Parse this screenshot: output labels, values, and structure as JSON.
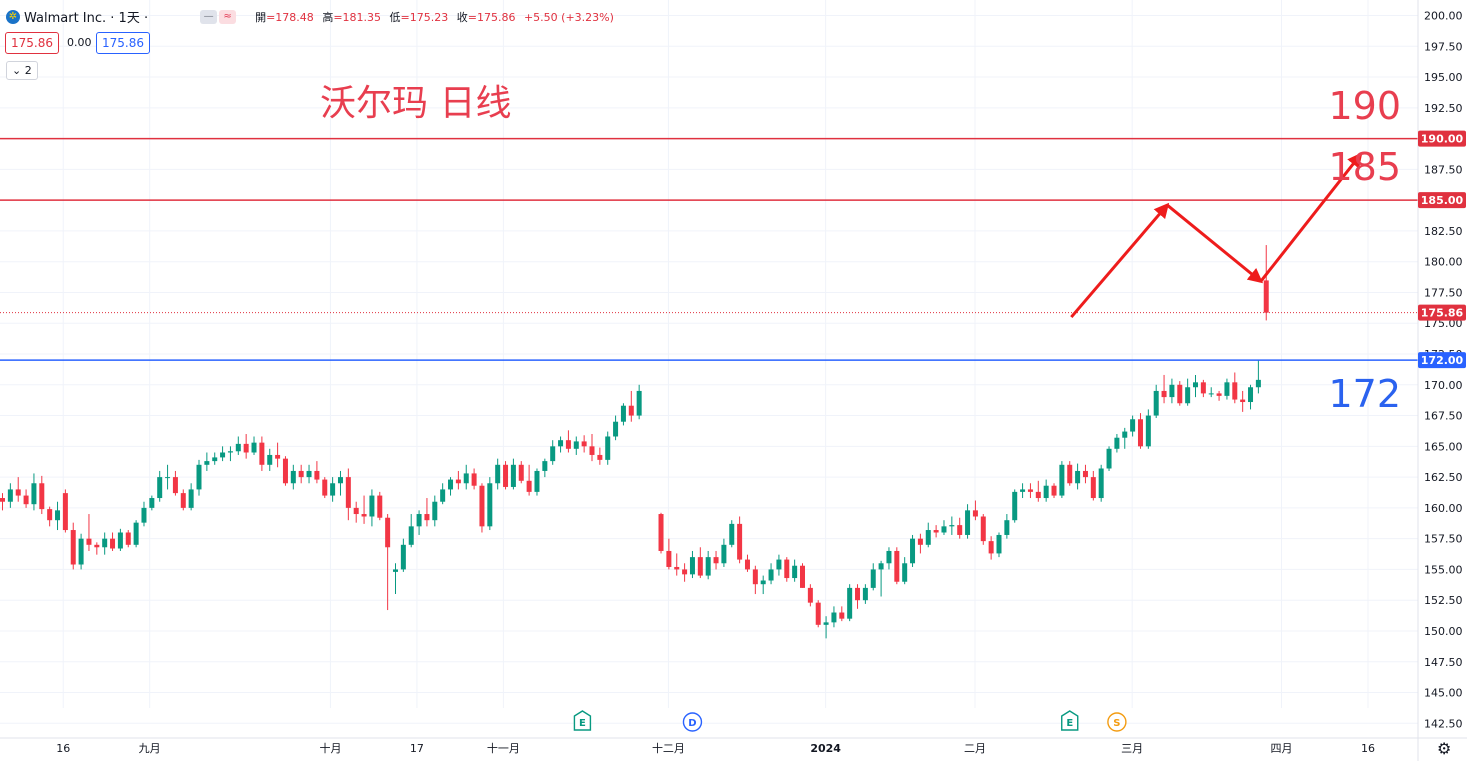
{
  "header": {
    "title": "Walmart Inc. · 1天 ·",
    "mode_buttons": [
      "—",
      "≈"
    ],
    "ohlc": {
      "open_label": "開",
      "open": "=178.48",
      "high_label": "高",
      "high": "=181.35",
      "low_label": "低",
      "low": "=175.23",
      "close_label": "收",
      "close": "=175.86",
      "change": "+5.50 (+3.23%)"
    },
    "bid": "175.86",
    "spread": "0.00",
    "ask": "175.86",
    "indicator_count": "2"
  },
  "annotations": {
    "title": "沃尔玛 日线",
    "level_190": "190",
    "level_185": "185",
    "level_172": "172"
  },
  "colors": {
    "up": "#089981",
    "down": "#f23645",
    "red_line": "#e0313f",
    "blue_line": "#2962ff",
    "arrow": "#ee1c1c"
  },
  "chart_data": {
    "type": "candlestick",
    "instrument": "Walmart Inc.",
    "interval": "1天",
    "y_axis": {
      "range": [
        142.5,
        200.0
      ],
      "ticks": [
        "200.00",
        "197.50",
        "195.00",
        "192.50",
        "190.00",
        "187.50",
        "185.00",
        "182.50",
        "180.00",
        "177.50",
        "175.00",
        "172.50",
        "170.00",
        "167.50",
        "165.00",
        "162.50",
        "160.00",
        "157.50",
        "155.00",
        "152.50",
        "150.00",
        "147.50",
        "145.00",
        "142.50"
      ]
    },
    "x_axis": {
      "ticks": [
        {
          "label": "16",
          "i": 2
        },
        {
          "label": "九月",
          "i": 13
        },
        {
          "label": "十月",
          "i": 36
        },
        {
          "label": "17",
          "i": 47
        },
        {
          "label": "十一月",
          "i": 58
        },
        {
          "label": "十二月",
          "i": 79
        },
        {
          "label": "2024",
          "i": 99
        },
        {
          "label": "二月",
          "i": 118
        },
        {
          "label": "三月",
          "i": 138
        },
        {
          "label": "四月",
          "i": 157
        },
        {
          "label": "16",
          "i": 168
        }
      ]
    },
    "series": [
      {
        "name": "Walmart Inc.",
        "ohlc": [
          [
            160.8,
            161.2,
            159.8,
            160.5
          ],
          [
            160.5,
            162.0,
            160.0,
            161.5
          ],
          [
            161.5,
            162.5,
            160.5,
            161.0
          ],
          [
            161.0,
            161.5,
            160.0,
            160.3
          ],
          [
            160.3,
            162.8,
            159.8,
            162.0
          ],
          [
            162.0,
            162.6,
            159.5,
            159.9
          ],
          [
            159.9,
            160.1,
            158.5,
            159.0
          ],
          [
            159.0,
            160.5,
            158.2,
            159.8
          ],
          [
            161.2,
            161.5,
            158.0,
            158.2
          ],
          [
            158.2,
            158.8,
            155.0,
            155.4
          ],
          [
            155.4,
            157.9,
            155.0,
            157.5
          ],
          [
            157.5,
            159.5,
            156.5,
            157.0
          ],
          [
            157.0,
            157.2,
            156.2,
            156.8
          ],
          [
            156.8,
            158.0,
            156.2,
            157.5
          ],
          [
            157.5,
            158.0,
            156.5,
            156.7
          ],
          [
            156.7,
            158.3,
            156.5,
            158.0
          ],
          [
            158.0,
            158.2,
            156.8,
            157.0
          ],
          [
            157.0,
            159.0,
            156.8,
            158.8
          ],
          [
            158.8,
            160.5,
            158.5,
            160.0
          ],
          [
            160.0,
            161.0,
            159.8,
            160.8
          ],
          [
            160.8,
            163.0,
            160.5,
            162.5
          ],
          [
            162.5,
            163.5,
            161.5,
            162.5
          ],
          [
            162.5,
            163.0,
            161.0,
            161.2
          ],
          [
            161.2,
            161.5,
            159.8,
            160.0
          ],
          [
            160.0,
            162.0,
            159.8,
            161.5
          ],
          [
            161.5,
            163.9,
            161.0,
            163.5
          ],
          [
            163.5,
            164.5,
            163.0,
            163.8
          ],
          [
            163.8,
            164.5,
            163.5,
            164.1
          ],
          [
            164.1,
            165.0,
            163.8,
            164.5
          ],
          [
            164.5,
            165.0,
            163.8,
            164.6
          ],
          [
            164.6,
            165.8,
            164.3,
            165.2
          ],
          [
            165.2,
            166.0,
            164.0,
            164.5
          ],
          [
            164.5,
            165.8,
            164.3,
            165.3
          ],
          [
            165.3,
            165.8,
            163.0,
            163.5
          ],
          [
            163.5,
            164.8,
            163.0,
            164.3
          ],
          [
            164.3,
            165.3,
            163.3,
            164.0
          ],
          [
            164.0,
            164.2,
            161.8,
            162.0
          ],
          [
            162.0,
            163.5,
            161.5,
            163.0
          ],
          [
            163.0,
            163.5,
            162.0,
            162.5
          ],
          [
            162.5,
            163.5,
            162.0,
            163.0
          ],
          [
            163.0,
            163.8,
            162.0,
            162.3
          ],
          [
            162.3,
            162.5,
            160.8,
            161.0
          ],
          [
            161.0,
            162.5,
            160.5,
            162.0
          ],
          [
            162.0,
            163.0,
            161.0,
            162.5
          ],
          [
            162.5,
            163.2,
            159.0,
            160.0
          ],
          [
            160.0,
            160.5,
            158.8,
            159.5
          ],
          [
            159.5,
            161.0,
            158.7,
            159.3
          ],
          [
            159.3,
            161.5,
            158.5,
            161.0
          ],
          [
            161.0,
            161.3,
            159.0,
            159.2
          ],
          [
            159.2,
            159.5,
            151.7,
            156.8
          ],
          [
            154.8,
            155.5,
            153.0,
            155.0
          ],
          [
            155.0,
            157.5,
            154.8,
            157.0
          ],
          [
            157.0,
            159.5,
            156.8,
            158.5
          ],
          [
            158.5,
            159.8,
            157.8,
            159.5
          ],
          [
            159.5,
            160.8,
            158.5,
            159.0
          ],
          [
            159.0,
            161.0,
            158.5,
            160.5
          ],
          [
            160.5,
            162.0,
            160.3,
            161.5
          ],
          [
            161.5,
            162.5,
            161.0,
            162.3
          ],
          [
            162.3,
            163.0,
            161.5,
            162.0
          ],
          [
            162.0,
            163.5,
            161.5,
            162.8
          ],
          [
            162.8,
            163.2,
            161.5,
            161.8
          ],
          [
            161.8,
            162.0,
            158.0,
            158.5
          ],
          [
            158.5,
            162.5,
            158.2,
            162.0
          ],
          [
            162.0,
            164.0,
            161.5,
            163.5
          ],
          [
            163.5,
            163.8,
            161.5,
            161.7
          ],
          [
            161.7,
            164.0,
            161.5,
            163.5
          ],
          [
            163.5,
            163.8,
            162.0,
            162.2
          ],
          [
            162.2,
            163.5,
            161.0,
            161.3
          ],
          [
            161.3,
            163.2,
            161.0,
            163.0
          ],
          [
            163.0,
            164.0,
            162.5,
            163.8
          ],
          [
            163.8,
            165.5,
            163.5,
            165.0
          ],
          [
            165.0,
            165.8,
            164.5,
            165.5
          ],
          [
            165.5,
            166.3,
            164.5,
            164.8
          ],
          [
            164.8,
            165.8,
            164.3,
            165.4
          ],
          [
            165.4,
            165.9,
            164.5,
            165.0
          ],
          [
            165.0,
            166.0,
            163.8,
            164.3
          ],
          [
            164.3,
            164.9,
            163.5,
            163.9
          ],
          [
            163.9,
            166.2,
            163.5,
            165.8
          ],
          [
            165.8,
            167.5,
            165.5,
            167.0
          ],
          [
            167.0,
            168.5,
            166.7,
            168.3
          ],
          [
            168.3,
            169.5,
            167.0,
            167.5
          ],
          [
            167.5,
            170.0,
            167.2,
            169.5
          ],
          [
            159.5,
            159.6,
            156.3,
            156.5
          ],
          [
            156.5,
            157.5,
            155.0,
            155.2
          ],
          [
            155.2,
            156.3,
            154.5,
            155.0
          ],
          [
            155.0,
            155.5,
            154.0,
            154.6
          ],
          [
            154.6,
            156.5,
            154.3,
            156.0
          ],
          [
            156.0,
            156.8,
            154.3,
            154.5
          ],
          [
            154.5,
            156.5,
            154.2,
            156.0
          ],
          [
            156.0,
            156.5,
            155.0,
            155.5
          ],
          [
            155.5,
            157.5,
            155.2,
            157.0
          ],
          [
            157.0,
            159.0,
            156.8,
            158.7
          ],
          [
            158.7,
            159.3,
            155.5,
            155.8
          ],
          [
            155.8,
            156.2,
            154.8,
            155.0
          ],
          [
            155.0,
            155.3,
            153.0,
            153.8
          ],
          [
            153.8,
            154.5,
            153.0,
            154.1
          ],
          [
            154.1,
            155.5,
            153.8,
            155.0
          ],
          [
            155.0,
            156.2,
            154.5,
            155.8
          ],
          [
            155.8,
            156.0,
            154.0,
            154.3
          ],
          [
            154.3,
            155.8,
            154.0,
            155.3
          ],
          [
            155.3,
            155.5,
            153.5,
            153.5
          ],
          [
            153.5,
            153.8,
            152.0,
            152.3
          ],
          [
            152.3,
            152.5,
            150.3,
            150.5
          ],
          [
            150.5,
            151.2,
            149.4,
            150.7
          ],
          [
            150.7,
            152.0,
            150.3,
            151.5
          ],
          [
            151.5,
            152.0,
            150.8,
            151.0
          ],
          [
            151.0,
            153.8,
            150.8,
            153.5
          ],
          [
            153.5,
            153.8,
            151.8,
            152.5
          ],
          [
            152.5,
            153.8,
            152.2,
            153.5
          ],
          [
            153.5,
            155.5,
            153.3,
            155.0
          ],
          [
            155.0,
            155.7,
            152.8,
            155.5
          ],
          [
            155.5,
            156.8,
            155.0,
            156.5
          ],
          [
            156.5,
            156.8,
            153.8,
            154.0
          ],
          [
            154.0,
            156.0,
            153.8,
            155.5
          ],
          [
            155.5,
            157.8,
            155.2,
            157.5
          ],
          [
            157.5,
            157.9,
            156.3,
            157.0
          ],
          [
            157.0,
            158.8,
            156.8,
            158.2
          ],
          [
            158.2,
            158.6,
            157.6,
            158.0
          ],
          [
            158.0,
            159.0,
            157.8,
            158.5
          ],
          [
            158.5,
            159.3,
            157.8,
            158.6
          ],
          [
            158.6,
            159.2,
            157.5,
            157.8
          ],
          [
            157.8,
            160.3,
            157.5,
            159.8
          ],
          [
            159.8,
            160.6,
            159.0,
            159.3
          ],
          [
            159.3,
            159.5,
            157.0,
            157.3
          ],
          [
            157.3,
            157.7,
            155.8,
            156.3
          ],
          [
            156.3,
            158.0,
            156.0,
            157.8
          ],
          [
            157.8,
            159.5,
            157.5,
            159.0
          ],
          [
            159.0,
            161.5,
            158.8,
            161.3
          ],
          [
            161.3,
            162.0,
            160.8,
            161.5
          ],
          [
            161.5,
            162.0,
            160.8,
            161.3
          ],
          [
            161.3,
            162.2,
            160.5,
            160.8
          ],
          [
            160.8,
            162.3,
            160.5,
            161.8
          ],
          [
            161.8,
            162.0,
            160.8,
            161.0
          ],
          [
            161.0,
            163.8,
            160.8,
            163.5
          ],
          [
            163.5,
            163.8,
            161.8,
            162.0
          ],
          [
            162.0,
            163.6,
            161.5,
            163.0
          ],
          [
            163.0,
            163.5,
            162.0,
            162.5
          ],
          [
            162.5,
            163.0,
            160.6,
            160.8
          ],
          [
            160.8,
            163.5,
            160.5,
            163.2
          ],
          [
            163.2,
            165.0,
            163.0,
            164.8
          ],
          [
            164.8,
            166.0,
            164.5,
            165.7
          ],
          [
            165.7,
            166.5,
            164.8,
            166.2
          ],
          [
            166.2,
            167.5,
            165.8,
            167.2
          ],
          [
            167.2,
            167.7,
            164.8,
            165.0
          ],
          [
            165.0,
            168.0,
            164.8,
            167.5
          ],
          [
            167.5,
            170.0,
            167.3,
            169.5
          ],
          [
            169.5,
            170.8,
            168.5,
            169.0
          ],
          [
            169.0,
            170.5,
            168.5,
            170.0
          ],
          [
            170.0,
            170.3,
            168.3,
            168.5
          ],
          [
            168.5,
            170.5,
            168.3,
            169.8
          ],
          [
            169.8,
            170.8,
            169.0,
            170.2
          ],
          [
            170.2,
            170.4,
            169.0,
            169.3
          ],
          [
            169.3,
            169.8,
            169.0,
            169.3
          ],
          [
            169.3,
            169.5,
            168.7,
            169.1
          ],
          [
            169.1,
            170.5,
            168.8,
            170.2
          ],
          [
            170.2,
            171.0,
            168.5,
            168.8
          ],
          [
            168.8,
            169.5,
            167.8,
            168.6
          ],
          [
            168.6,
            170.0,
            168.0,
            169.8
          ],
          [
            169.8,
            172.0,
            169.3,
            170.4
          ],
          [
            178.48,
            181.35,
            175.23,
            175.86
          ]
        ]
      }
    ],
    "horizontal_lines": [
      {
        "price": 190.0,
        "label": "190.00",
        "color": "red"
      },
      {
        "price": 185.0,
        "label": "185.00",
        "color": "red"
      },
      {
        "price": 175.86,
        "label": "175.86",
        "color": "red",
        "style": "dotted",
        "role": "last-price"
      },
      {
        "price": 172.0,
        "label": "172.00",
        "color": "blue"
      }
    ],
    "projection_path": {
      "color": "red",
      "points": [
        {
          "i": 134.2,
          "price": 175.5
        },
        {
          "i": 146.4,
          "price": 184.6
        },
        {
          "i": 158.3,
          "price": 178.4
        },
        {
          "i": 171.0,
          "price": 188.7
        }
      ]
    },
    "event_markers": [
      {
        "label": "E",
        "i": 72,
        "color": "#089981"
      },
      {
        "label": "D",
        "i": 86,
        "color": "#2962ff"
      },
      {
        "label": "E",
        "i": 134,
        "color": "#089981"
      },
      {
        "label": "S",
        "i": 140,
        "color": "#f39c12"
      }
    ]
  }
}
